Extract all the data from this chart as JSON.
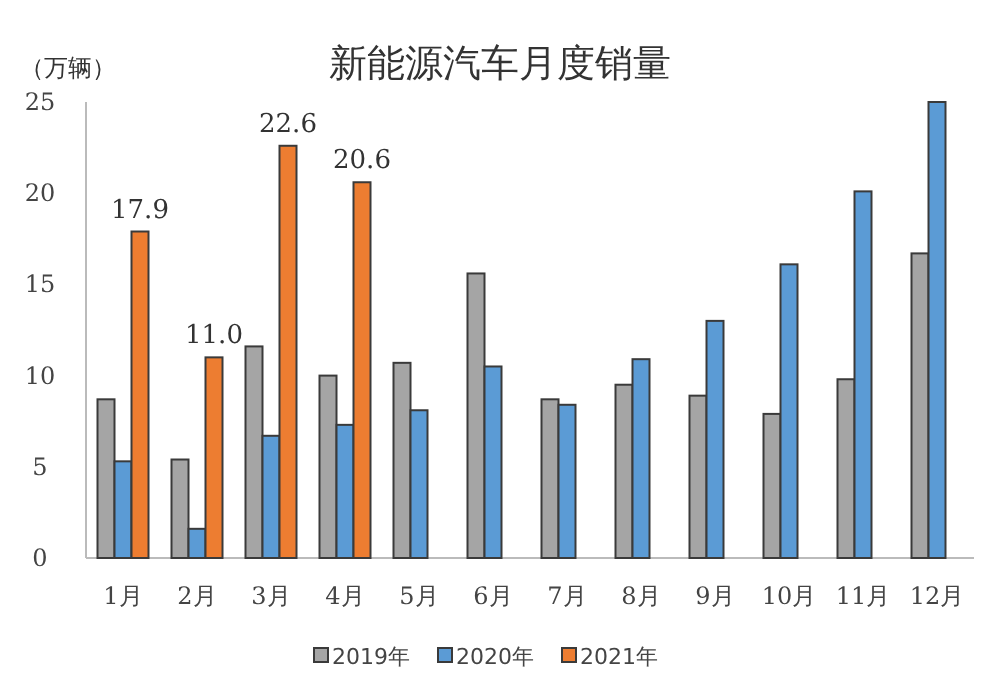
{
  "chart_data": {
    "type": "bar",
    "title": "新能源汽车月度销量",
    "ylabel": "（万辆）",
    "categories": [
      "1月",
      "2月",
      "3月",
      "4月",
      "5月",
      "6月",
      "7月",
      "8月",
      "9月",
      "10月",
      "11月",
      "12月"
    ],
    "series": [
      {
        "name": "2019年",
        "color": "#a5a5a5",
        "values": [
          8.7,
          5.4,
          11.6,
          10.0,
          10.7,
          15.6,
          8.7,
          9.5,
          8.9,
          7.9,
          9.8,
          16.7
        ]
      },
      {
        "name": "2020年",
        "color": "#5b9bd5",
        "values": [
          5.3,
          1.6,
          6.7,
          7.3,
          8.1,
          10.5,
          8.4,
          10.9,
          13.0,
          16.1,
          20.1,
          25.0
        ]
      },
      {
        "name": "2021年",
        "color": "#ed7d31",
        "values": [
          17.9,
          11.0,
          22.6,
          20.6,
          null,
          null,
          null,
          null,
          null,
          null,
          null,
          null
        ],
        "value_labels": [
          "17.9",
          "11.0",
          "22.6",
          "20.6",
          null,
          null,
          null,
          null,
          null,
          null,
          null,
          null
        ]
      }
    ],
    "ylim": [
      0,
      25
    ],
    "yticks": [
      0,
      5,
      10,
      15,
      20,
      25
    ],
    "grid": false,
    "legend": "bottom"
  }
}
